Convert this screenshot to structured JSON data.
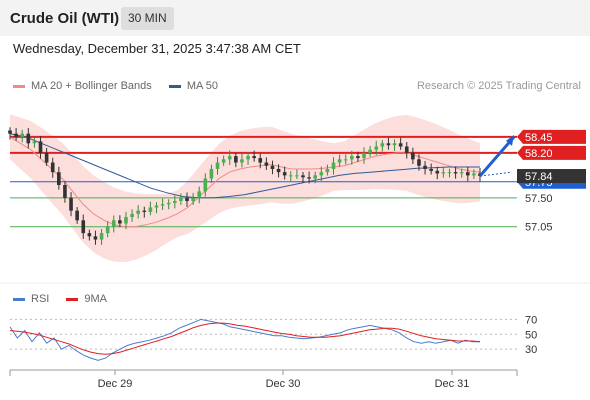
{
  "header": {
    "title": "Crude Oil (WTI)",
    "timeframe": "30 MIN"
  },
  "datetime": "Wednesday, December 31, 2025 3:47:38 AM CET",
  "legend": {
    "items": [
      {
        "label": "MA 20 + Bollinger Bands",
        "color": "#f08a84"
      },
      {
        "label": "MA 50",
        "color": "#2f5b9a"
      }
    ],
    "research": "Research © 2025 Trading Central"
  },
  "rsi_legend": {
    "items": [
      {
        "label": "RSI",
        "color": "#4a7bd0"
      },
      {
        "label": "9MA",
        "color": "#e02020"
      }
    ]
  },
  "chart_data": [
    {
      "type": "line",
      "name": "price",
      "x_ticks": [
        "Dec 29",
        "Dec 30",
        "Dec 31"
      ],
      "y_range": [
        56.5,
        58.9
      ],
      "levels": [
        {
          "value": 58.45,
          "label": "58.45",
          "kind": "resistance",
          "color": "#e02020"
        },
        {
          "value": 58.2,
          "label": "58.20",
          "kind": "resistance",
          "color": "#e02020"
        },
        {
          "value": 57.75,
          "label": "57.75",
          "kind": "pivot",
          "color": "#1f5fd0"
        },
        {
          "value": 57.5,
          "label": "57.50",
          "kind": "support",
          "color": "#4caf50"
        },
        {
          "value": 57.05,
          "label": "57.05",
          "kind": "support",
          "color": "#4caf50"
        }
      ],
      "current_price": {
        "value": 57.84,
        "label": "57.84"
      },
      "close": [
        58.5,
        58.45,
        58.5,
        58.35,
        58.38,
        58.2,
        58.05,
        57.9,
        57.7,
        57.5,
        57.3,
        57.15,
        56.95,
        56.9,
        56.85,
        56.95,
        57.05,
        57.15,
        57.1,
        57.2,
        57.25,
        57.3,
        57.28,
        57.35,
        57.38,
        57.4,
        57.42,
        57.45,
        57.5,
        57.45,
        57.5,
        57.6,
        57.8,
        57.95,
        58.05,
        58.1,
        58.15,
        58.05,
        58.1,
        58.15,
        58.12,
        58.05,
        58.0,
        57.95,
        57.9,
        57.85,
        57.85,
        57.85,
        57.82,
        57.8,
        57.85,
        57.9,
        57.95,
        58.05,
        58.1,
        58.1,
        58.15,
        58.12,
        58.2,
        58.25,
        58.3,
        58.35,
        58.32,
        58.35,
        58.3,
        58.2,
        58.1,
        58.0,
        57.95,
        57.92,
        57.88,
        57.9,
        57.9,
        57.88,
        57.9,
        57.85,
        57.88,
        57.84
      ],
      "ma20": [
        58.45,
        58.35,
        58.25,
        58.1,
        57.95,
        57.8,
        57.6,
        57.4,
        57.25,
        57.15,
        57.08,
        57.05,
        57.05,
        57.08,
        57.12,
        57.18,
        57.25,
        57.35,
        57.5,
        57.65,
        57.8,
        57.9,
        57.95,
        57.98,
        58.0,
        58.02,
        57.98,
        57.95,
        57.95,
        57.95,
        57.96,
        57.98,
        58.0,
        58.05,
        58.1,
        58.15,
        58.18,
        58.2,
        58.2,
        58.15,
        58.1,
        58.05,
        58.0,
        57.95,
        57.92,
        57.9
      ],
      "ma50": [
        58.5,
        58.45,
        58.35,
        58.25,
        58.15,
        58.05,
        57.95,
        57.85,
        57.75,
        57.65,
        57.58,
        57.52,
        57.5,
        57.5,
        57.52,
        57.55,
        57.6,
        57.65,
        57.7,
        57.75,
        57.8,
        57.85,
        57.88,
        57.9,
        57.92,
        57.94,
        57.96,
        57.97,
        57.98,
        57.98,
        57.98
      ]
    },
    {
      "type": "line",
      "name": "RSI",
      "y_ticks": [
        70,
        50,
        30
      ],
      "y_range": [
        10,
        80
      ],
      "rsi": [
        60,
        45,
        55,
        40,
        52,
        38,
        45,
        30,
        35,
        28,
        22,
        18,
        15,
        18,
        25,
        30,
        35,
        38,
        40,
        42,
        45,
        48,
        52,
        58,
        62,
        66,
        70,
        68,
        66,
        64,
        60,
        58,
        56,
        54,
        52,
        50,
        48,
        48,
        46,
        45,
        44,
        45,
        46,
        48,
        50,
        52,
        56,
        58,
        60,
        62,
        60,
        58,
        56,
        52,
        45,
        40,
        38,
        40,
        38,
        40,
        42,
        38,
        42,
        40,
        40
      ],
      "ma9": [
        55,
        54,
        53,
        51,
        49,
        46,
        43,
        40,
        37,
        33,
        29,
        26,
        24,
        23,
        24,
        26,
        29,
        32,
        35,
        38,
        41,
        44,
        47,
        51,
        55,
        59,
        62,
        64,
        65,
        65,
        64,
        62,
        61,
        59,
        57,
        55,
        53,
        51,
        50,
        48,
        47,
        46,
        46,
        46,
        47,
        48,
        50,
        52,
        54,
        56,
        57,
        58,
        58,
        57,
        54,
        51,
        48,
        46,
        44,
        43,
        42,
        41,
        41,
        41,
        40
      ]
    }
  ]
}
